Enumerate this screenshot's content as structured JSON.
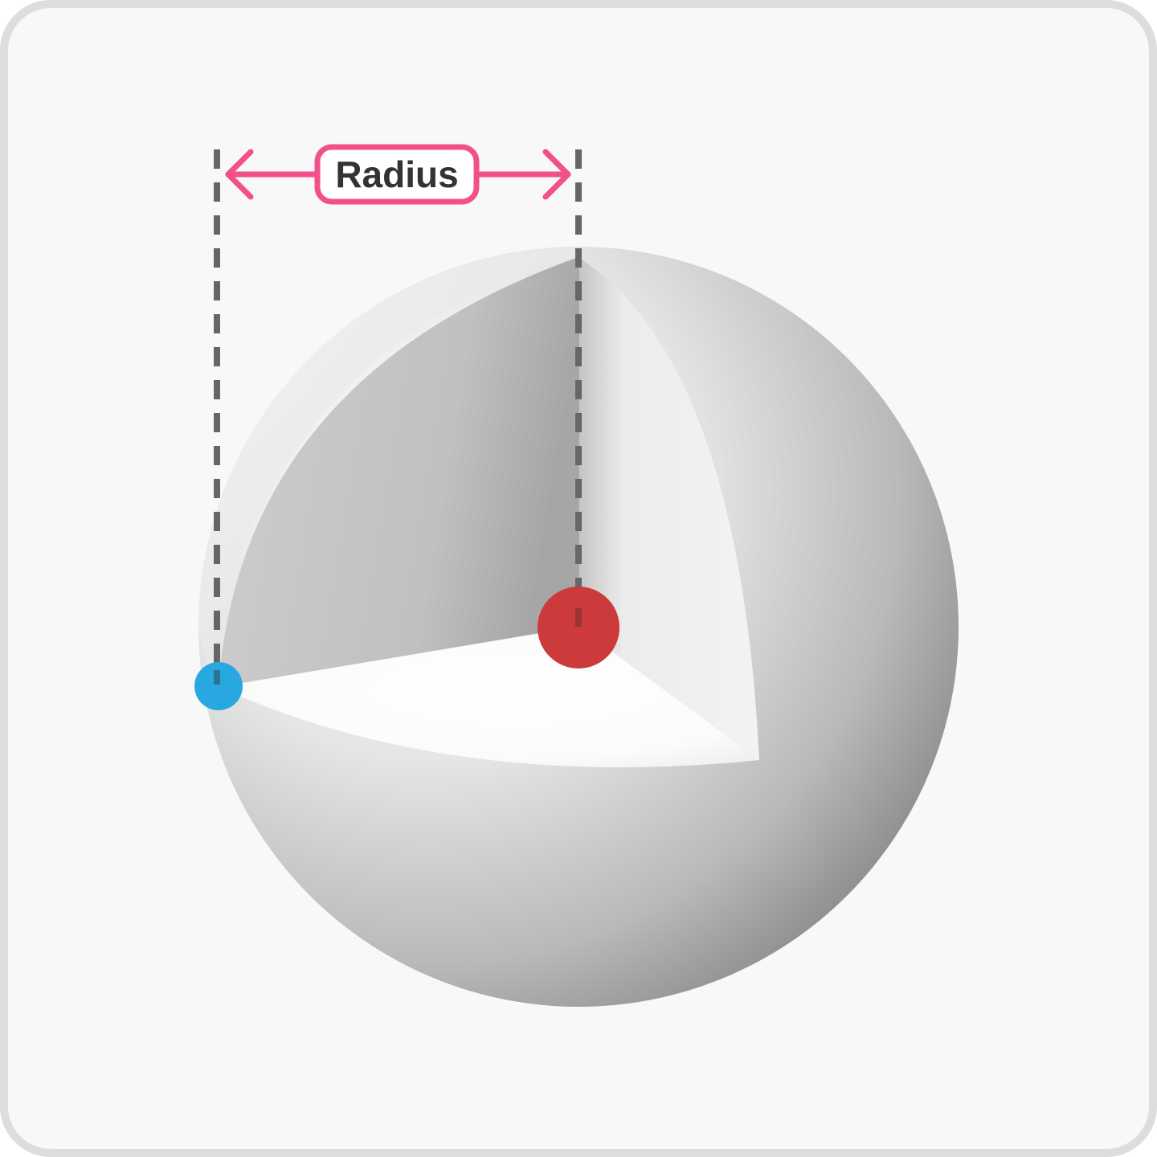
{
  "diagram": {
    "label": "Radius",
    "colors": {
      "background": "#f8f8f8",
      "border": "#dddddd",
      "arrow": "#f2508a",
      "label_text": "#333333",
      "guide_dash": "#666666",
      "center_dot": "#cc3a3b",
      "surface_dot": "#28a8e0"
    },
    "elements": {
      "sphere": "sphere-with-cutaway-octant",
      "center_point": "center-point",
      "surface_point": "surface-point",
      "measure_arrow": "double-headed-arrow"
    }
  }
}
